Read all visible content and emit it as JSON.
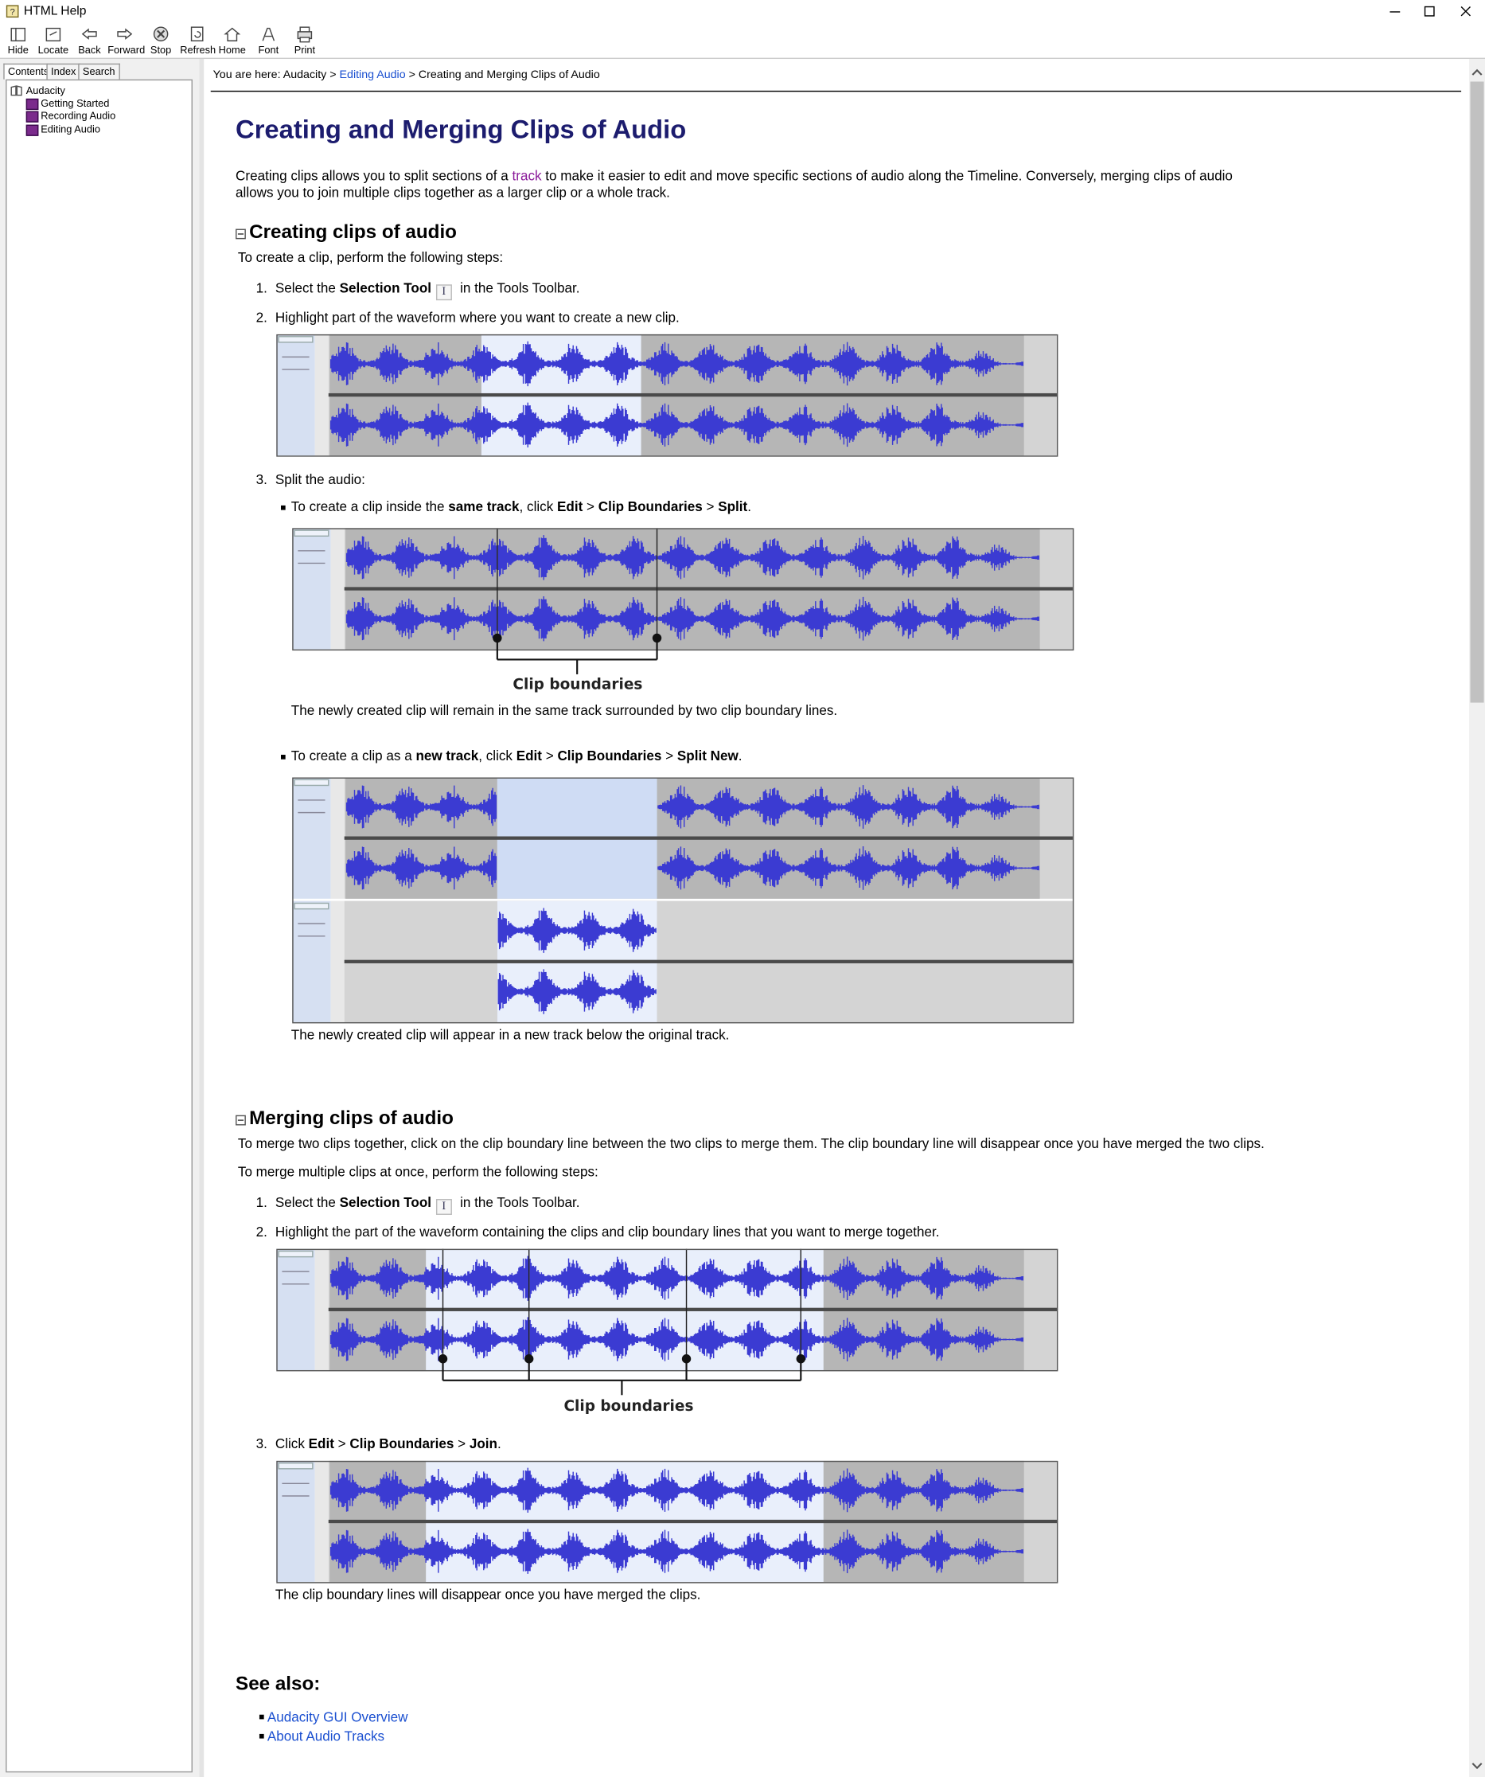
{
  "window": {
    "title": "HTML Help",
    "toolbar": [
      "Hide",
      "Locate",
      "Back",
      "Forward",
      "Stop",
      "Refresh",
      "Home",
      "Font",
      "Print"
    ]
  },
  "nav": {
    "tabs": [
      "Contents",
      "Index",
      "Search"
    ],
    "tree": [
      "Audacity",
      "Getting Started",
      "Recording Audio",
      "Editing Audio"
    ]
  },
  "breadcrumb": {
    "prefix": "You are here: Audacity >",
    "link": "Editing Audio",
    "suffix": "> Creating and Merging Clips of Audio"
  },
  "article": {
    "title": "Creating and Merging Clips of Audio",
    "intro": [
      "Creating clips allows you to split sections of a ",
      "track",
      " to make it easier to edit and move specific sections of audio along the Timeline. Conversely, merging clips of audio allows you to join multiple clips together as a larger clip or a whole track."
    ],
    "numbers": [
      "1.",
      "2.",
      "3."
    ],
    "creating": {
      "heading": "Creating clips of audio",
      "lead": "To create a clip, perform the following steps:",
      "step1": [
        "Select the ",
        "Selection Tool",
        " in the Tools Toolbar."
      ],
      "step2": "Highlight part of the waveform where you want to create a new clip.",
      "step3": "Split the audio:",
      "split": [
        "To create a clip inside the ",
        "same track",
        ", click ",
        "Edit",
        " > ",
        "Clip Boundaries",
        " > ",
        "Split",
        "."
      ],
      "boundaries_label": "Clip boundaries",
      "split_note": "The newly created clip will remain in the same track surrounded by two clip boundary lines.",
      "split_new": [
        "To create a clip as a ",
        "new track",
        ", click ",
        "Edit",
        " > ",
        "Clip Boundaries",
        " > ",
        "Split New",
        "."
      ],
      "split_new_note": "The newly created clip will appear in a new track below the original track."
    },
    "merging": {
      "heading": "Merging clips of audio",
      "para1": "To merge two clips together, click on the clip boundary line between the two clips to merge them. The clip boundary line will disappear once you have merged the two clips.",
      "para2": "To merge multiple clips at once, perform the following steps:",
      "step1": [
        "Select the ",
        "Selection Tool",
        " in the Tools Toolbar."
      ],
      "step2": "Highlight the part of the waveform containing the clips and clip boundary lines that you want to merge together.",
      "boundaries_label": "Clip boundaries",
      "step3": [
        "Click ",
        "Edit",
        " > ",
        "Clip Boundaries",
        " > ",
        "Join",
        "."
      ],
      "note": "The clip boundary lines will disappear once you have merged the clips."
    },
    "see_also": {
      "heading": "See also:",
      "links": [
        "Audacity GUI Overview",
        "About Audio Tracks"
      ]
    }
  }
}
